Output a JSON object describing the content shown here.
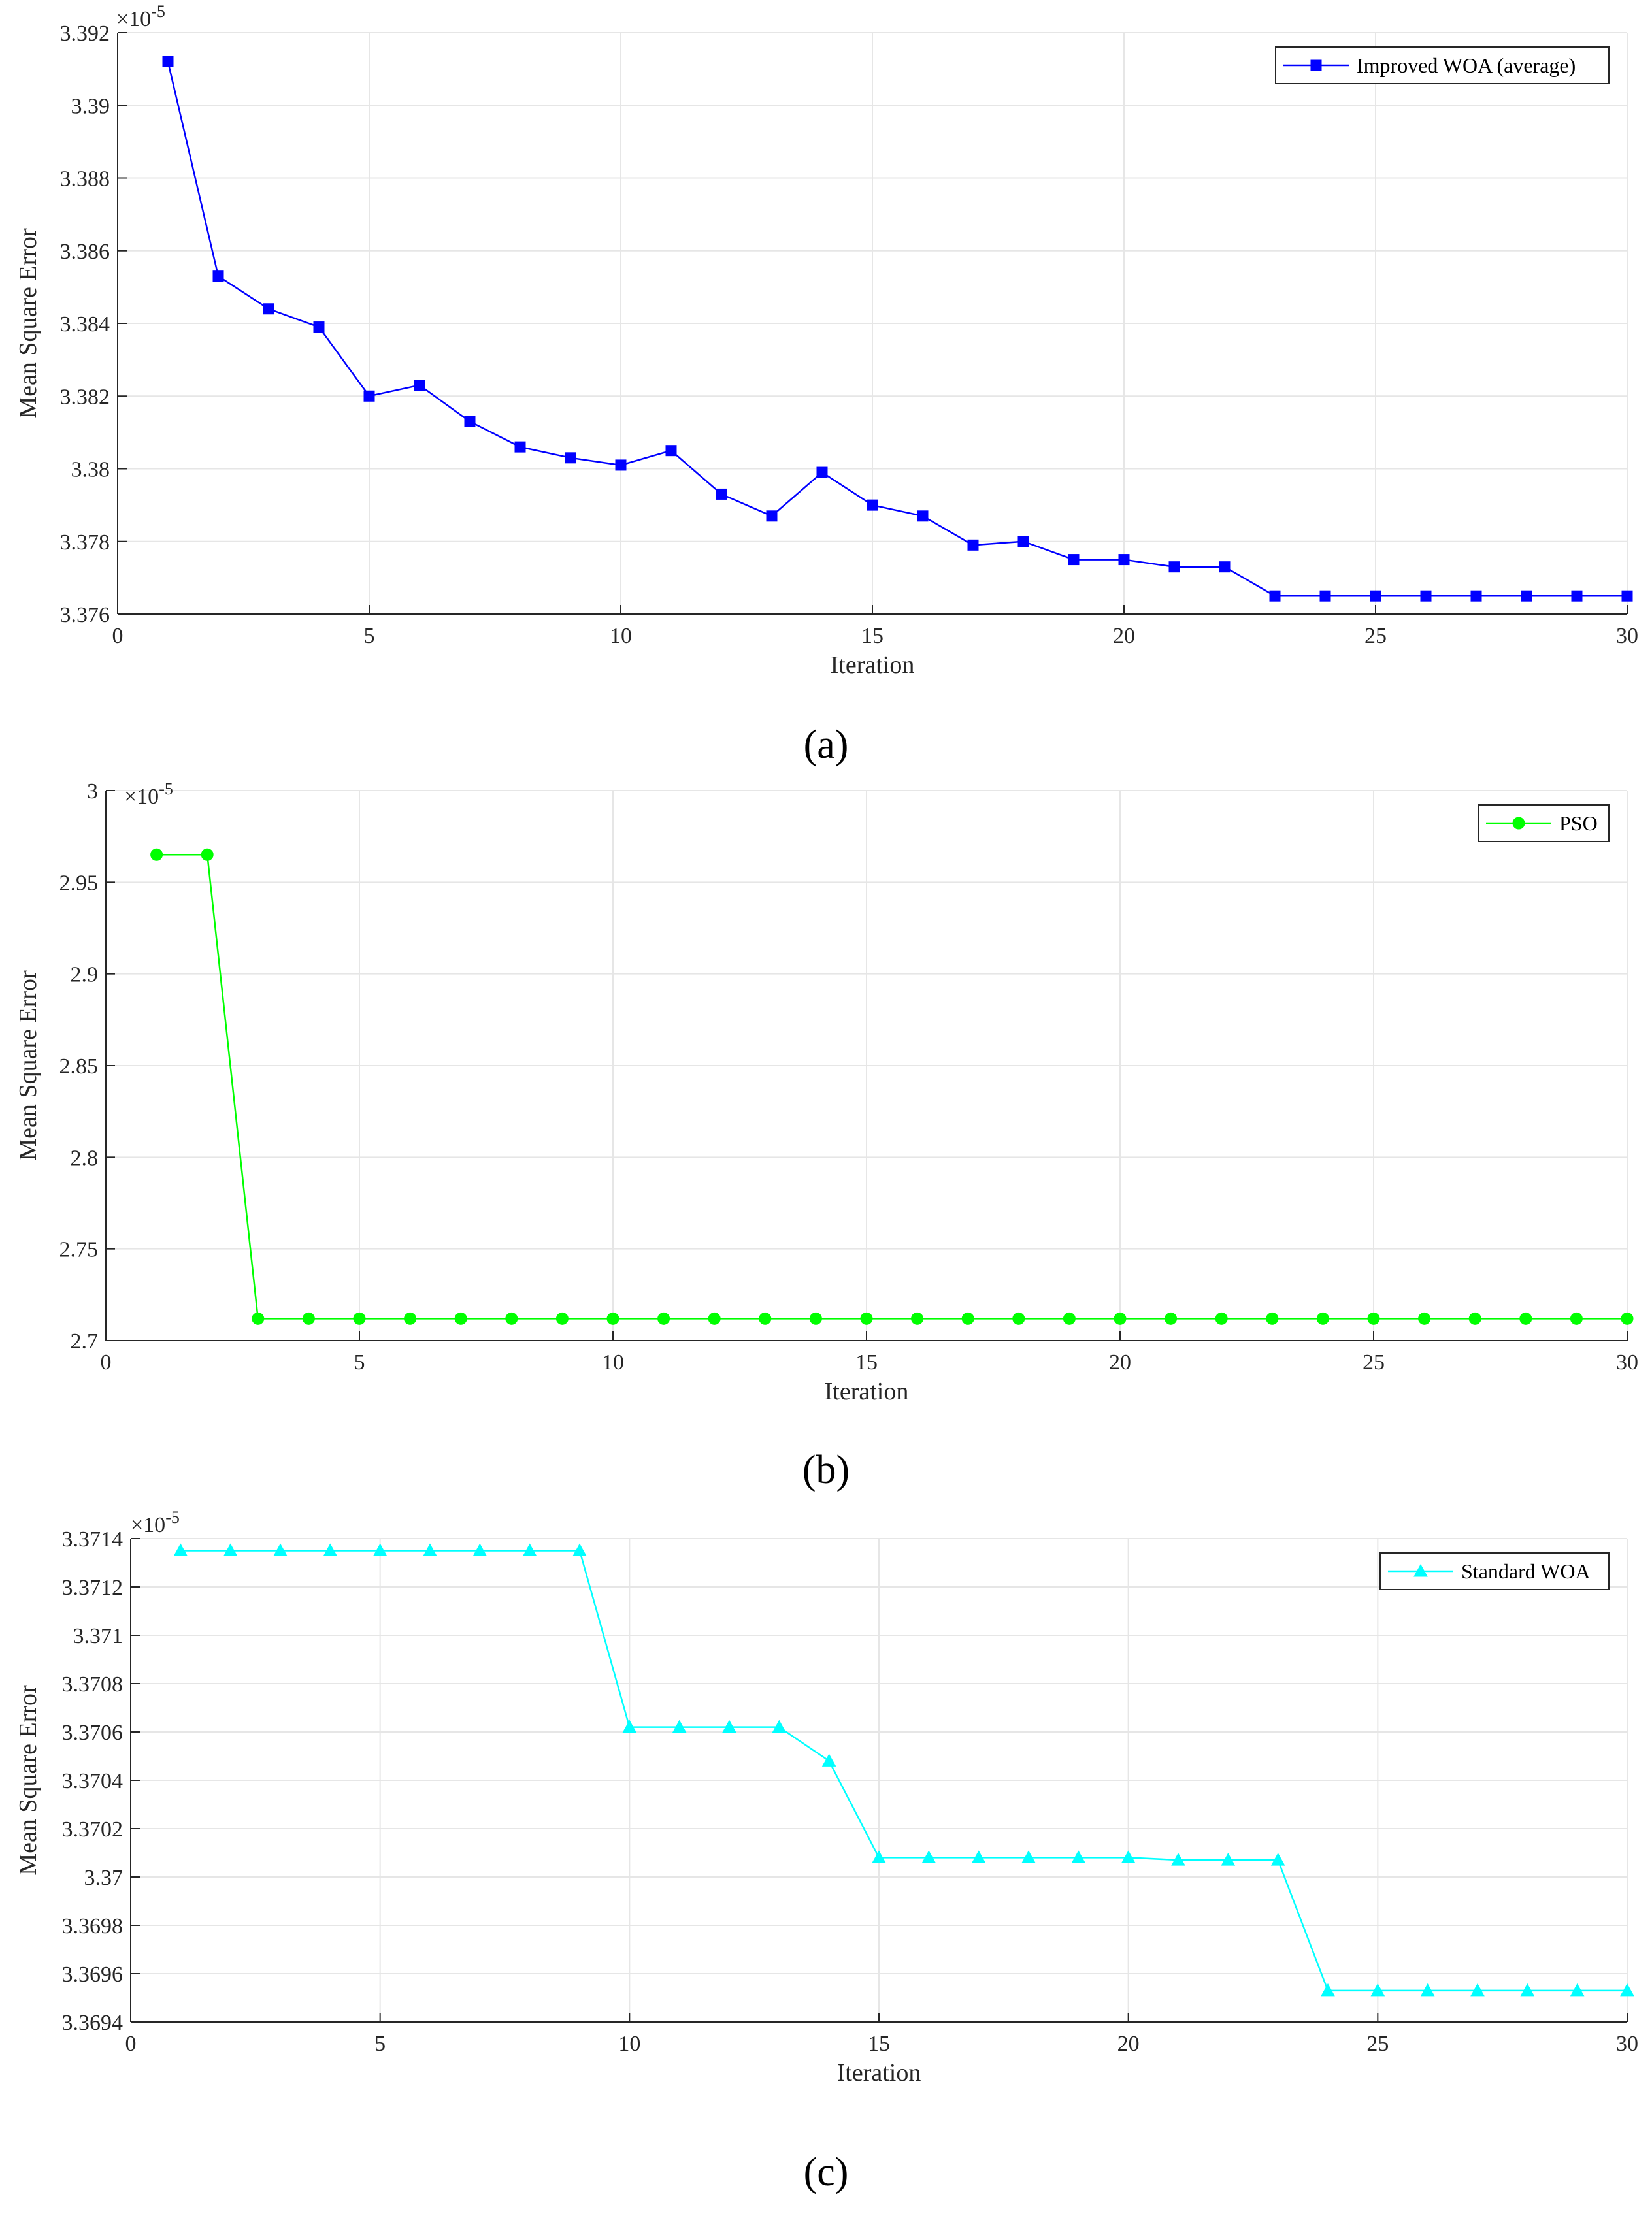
{
  "chart_data": [
    {
      "type": "line",
      "caption": "(a)",
      "xlabel": "Iteration",
      "ylabel": "Mean Square Error",
      "exponent_label": "×10",
      "exponent_power": "-5",
      "xlim": [
        0,
        30
      ],
      "ylim": [
        3.376,
        3.392
      ],
      "xticks": [
        0,
        5,
        10,
        15,
        20,
        25,
        30
      ],
      "xtick_labels": [
        "0",
        "5",
        "10",
        "15",
        "20",
        "25",
        "30"
      ],
      "yticks": [
        3.376,
        3.378,
        3.38,
        3.382,
        3.384,
        3.386,
        3.388,
        3.39,
        3.392
      ],
      "ytick_labels": [
        "3.376",
        "3.378",
        "3.38",
        "3.382",
        "3.384",
        "3.386",
        "3.388",
        "3.39",
        "3.392"
      ],
      "grid": true,
      "legend_position": "top-right",
      "series": [
        {
          "name": "Improved WOA (average)",
          "color": "#0000ff",
          "marker": "square",
          "x": [
            1,
            2,
            3,
            4,
            5,
            6,
            7,
            8,
            9,
            10,
            11,
            12,
            13,
            14,
            15,
            16,
            17,
            18,
            19,
            20,
            21,
            22,
            23,
            24,
            25,
            26,
            27,
            28,
            29,
            30
          ],
          "y": [
            3.3912,
            3.3853,
            3.3844,
            3.3839,
            3.382,
            3.3823,
            3.3813,
            3.3806,
            3.3803,
            3.3801,
            3.3805,
            3.3793,
            3.3787,
            3.3799,
            3.379,
            3.3787,
            3.3779,
            3.378,
            3.3775,
            3.3775,
            3.3773,
            3.3773,
            3.3765,
            3.3765,
            3.3765,
            3.3765,
            3.3765,
            3.3765,
            3.3765,
            3.3765
          ]
        }
      ]
    },
    {
      "type": "line",
      "caption": "(b)",
      "xlabel": "Iteration",
      "ylabel": "Mean Square Error",
      "exponent_label": "×10",
      "exponent_power": "-5",
      "xlim": [
        0,
        30
      ],
      "ylim": [
        2.7,
        3.0
      ],
      "xticks": [
        0,
        5,
        10,
        15,
        20,
        25,
        30
      ],
      "xtick_labels": [
        "0",
        "5",
        "10",
        "15",
        "20",
        "25",
        "30"
      ],
      "yticks": [
        2.7,
        2.75,
        2.8,
        2.85,
        2.9,
        2.95,
        3.0
      ],
      "ytick_labels": [
        "2.7",
        "2.75",
        "2.8",
        "2.85",
        "2.9",
        "2.95",
        "3"
      ],
      "grid": true,
      "legend_position": "top-right",
      "series": [
        {
          "name": "PSO",
          "color": "#00ff00",
          "marker": "circle",
          "x": [
            1,
            2,
            3,
            4,
            5,
            6,
            7,
            8,
            9,
            10,
            11,
            12,
            13,
            14,
            15,
            16,
            17,
            18,
            19,
            20,
            21,
            22,
            23,
            24,
            25,
            26,
            27,
            28,
            29,
            30
          ],
          "y": [
            2.965,
            2.965,
            2.712,
            2.712,
            2.712,
            2.712,
            2.712,
            2.712,
            2.712,
            2.712,
            2.712,
            2.712,
            2.712,
            2.712,
            2.712,
            2.712,
            2.712,
            2.712,
            2.712,
            2.712,
            2.712,
            2.712,
            2.712,
            2.712,
            2.712,
            2.712,
            2.712,
            2.712,
            2.712,
            2.712
          ]
        }
      ]
    },
    {
      "type": "line",
      "caption": "(c)",
      "xlabel": "Iteration",
      "ylabel": "Mean Square Error",
      "exponent_label": "×10",
      "exponent_power": "-5",
      "xlim": [
        0,
        30
      ],
      "ylim": [
        3.3694,
        3.3714
      ],
      "xticks": [
        0,
        5,
        10,
        15,
        20,
        25,
        30
      ],
      "xtick_labels": [
        "0",
        "5",
        "10",
        "15",
        "20",
        "25",
        "30"
      ],
      "yticks": [
        3.3694,
        3.3696,
        3.3698,
        3.37,
        3.3702,
        3.3704,
        3.3706,
        3.3708,
        3.371,
        3.3712,
        3.3714
      ],
      "ytick_labels": [
        "3.3694",
        "3.3696",
        "3.3698",
        "3.37",
        "3.3702",
        "3.3704",
        "3.3706",
        "3.3708",
        "3.371",
        "3.3712",
        "3.3714"
      ],
      "grid": true,
      "legend_position": "top-right",
      "series": [
        {
          "name": "Standard WOA",
          "color": "#00ffff",
          "marker": "triangle",
          "x": [
            1,
            2,
            3,
            4,
            5,
            6,
            7,
            8,
            9,
            10,
            11,
            12,
            13,
            14,
            15,
            16,
            17,
            18,
            19,
            20,
            21,
            22,
            23,
            24,
            25,
            26,
            27,
            28,
            29,
            30
          ],
          "y": [
            3.37135,
            3.37135,
            3.37135,
            3.37135,
            3.37135,
            3.37135,
            3.37135,
            3.37135,
            3.37135,
            3.37062,
            3.37062,
            3.37062,
            3.37062,
            3.37048,
            3.37008,
            3.37008,
            3.37008,
            3.37008,
            3.37008,
            3.37008,
            3.37007,
            3.37007,
            3.37007,
            3.36953,
            3.36953,
            3.36953,
            3.36953,
            3.36953,
            3.36953,
            3.36953
          ]
        }
      ]
    }
  ]
}
